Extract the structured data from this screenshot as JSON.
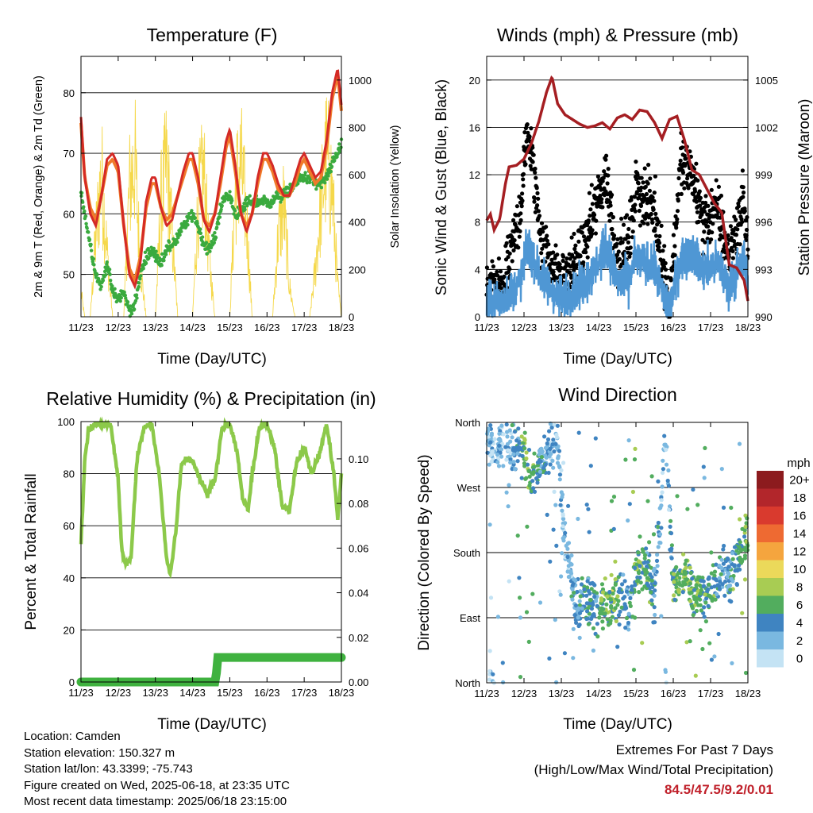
{
  "panels": {
    "temperature": {
      "title": "Temperature (F)",
      "ylabel_left": "2m & 9m T (Red, Orange) & 2m Td (Green)",
      "ylabel_right": "Solar Insolation (Yellow)",
      "xlabel": "Time (Day/UTC)"
    },
    "winds": {
      "title": "Winds (mph) & Pressure (mb)",
      "ylabel_left": "Sonic Wind & Gust (Blue, Black)",
      "ylabel_right": "Station Pressure (Maroon)",
      "xlabel": "Time (Day/UTC)"
    },
    "humidity": {
      "title": "Relative Humidity (%) & Precipitation (in)",
      "ylabel_left": "Percent & Total Rainfall",
      "xlabel": "Time (Day/UTC)"
    },
    "direction": {
      "title": "Wind Direction",
      "ylabel_left": "Direction (Colored By Speed)",
      "xlabel": "Time (Day/UTC)",
      "legend_title": "mph"
    }
  },
  "colors": {
    "temp_2m": "#d42a26",
    "temp_9m": "#f07a2a",
    "dewpoint": "#3aaa3e",
    "solar": "#f5d84a",
    "wind": "#4f97d4",
    "gust": "#000000",
    "pressure": "#a51e22",
    "rh": "#8cc94a",
    "precip": "#3fb23f",
    "extremes_text": "#c0202a"
  },
  "info": {
    "location": "Location: Camden",
    "elevation": "Station elevation: 150.327 m",
    "latlon": "Station lat/lon: 43.3399; -75.743",
    "created": "Figure created on Wed, 2025-06-18, at 23:35 UTC",
    "latest": "Most recent data timestamp: 2025/06/18 23:15:00"
  },
  "extremes": {
    "title": "Extremes For Past 7 Days",
    "subtitle": "(High/Low/Max Wind/Total Precipitation)",
    "values": "84.5/47.5/9.2/0.01"
  },
  "chart_data": [
    {
      "type": "line",
      "panel": "temperature",
      "x_ticks": [
        "11/23",
        "12/23",
        "13/23",
        "14/23",
        "15/23",
        "16/23",
        "17/23",
        "18/23"
      ],
      "x": [
        0,
        0.1,
        0.25,
        0.4,
        0.55,
        0.7,
        0.85,
        1,
        1.15,
        1.3,
        1.45,
        1.6,
        1.75,
        1.9,
        2,
        2.15,
        2.3,
        2.45,
        2.6,
        2.75,
        2.9,
        3,
        3.15,
        3.3,
        3.45,
        3.6,
        3.75,
        3.9,
        4,
        4.15,
        4.3,
        4.45,
        4.6,
        4.75,
        4.9,
        5,
        5.15,
        5.3,
        5.45,
        5.6,
        5.75,
        5.9,
        6,
        6.15,
        6.3,
        6.45,
        6.6,
        6.75,
        6.9,
        7
      ],
      "series": [
        {
          "name": "2m T",
          "color": "#d42a26",
          "y": [
            76,
            66,
            60,
            58,
            63,
            69,
            70,
            68,
            58,
            50,
            48,
            52,
            62,
            66,
            66,
            61,
            58,
            59,
            63,
            67,
            70,
            70,
            66,
            59,
            57,
            60,
            66,
            72,
            74,
            68,
            60,
            57,
            60,
            66,
            70,
            70,
            68,
            65,
            63,
            63,
            66,
            69,
            70,
            68,
            66,
            67,
            72,
            80,
            84,
            78
          ]
        },
        {
          "name": "9m T",
          "color": "#f07a2a",
          "y": [
            75,
            66,
            61,
            59,
            63,
            68,
            69,
            67,
            58,
            51,
            49,
            53,
            61,
            65,
            65,
            61,
            59,
            60,
            63,
            66,
            69,
            69,
            65,
            59,
            58,
            60,
            65,
            71,
            73,
            67,
            60,
            58,
            60,
            65,
            69,
            69,
            67,
            64,
            63,
            63,
            65,
            68,
            69,
            67,
            65,
            66,
            71,
            79,
            83,
            77
          ]
        },
        {
          "name": "2m Td",
          "color": "#3aaa3e",
          "y": [
            64,
            60,
            55,
            50,
            48,
            52,
            47,
            46,
            47,
            44,
            45,
            50,
            53,
            54,
            53,
            52,
            54,
            55,
            56,
            58,
            59,
            60,
            58,
            55,
            54,
            56,
            61,
            63,
            63,
            60,
            60,
            62,
            62,
            62,
            62,
            62,
            62,
            63,
            63,
            64,
            65,
            66,
            66,
            66,
            65,
            65,
            66,
            68,
            70,
            72
          ]
        },
        {
          "name": "Solar",
          "color": "#f5d84a",
          "axis": "right",
          "y": [
            150,
            0,
            0,
            500,
            900,
            400,
            0,
            0,
            0,
            800,
            980,
            300,
            0,
            0,
            0,
            700,
            950,
            500,
            0,
            0,
            0,
            0,
            700,
            900,
            350,
            0,
            0,
            0,
            0,
            800,
            950,
            600,
            0,
            0,
            0,
            0,
            0,
            500,
            700,
            200,
            0,
            0,
            0,
            0,
            300,
            700,
            1000,
            800,
            200,
            0
          ]
        }
      ],
      "ylim": [
        43,
        86
      ],
      "yticks": [
        50,
        60,
        70,
        80
      ],
      "ylim_right": [
        0,
        1100
      ],
      "yticks_right": [
        0,
        200,
        400,
        600,
        800,
        1000
      ],
      "grid": true
    },
    {
      "type": "scatter",
      "panel": "winds",
      "x_ticks": [
        "11/23",
        "12/23",
        "13/23",
        "14/23",
        "15/23",
        "16/23",
        "17/23",
        "18/23"
      ],
      "pressure": {
        "x": [
          0,
          0.1,
          0.2,
          0.35,
          0.5,
          0.6,
          0.8,
          1,
          1.2,
          1.4,
          1.6,
          1.75,
          1.9,
          2.1,
          2.3,
          2.5,
          2.7,
          2.9,
          3.1,
          3.3,
          3.5,
          3.7,
          3.9,
          4.1,
          4.3,
          4.5,
          4.7,
          4.9,
          5.1,
          5.3,
          5.5,
          5.7,
          5.9,
          6.1,
          6.3,
          6.5,
          6.7,
          6.9,
          7
        ],
        "y": [
          996.1,
          996.5,
          995.5,
          996.2,
          998.4,
          999.5,
          999.6,
          1000,
          1001,
          1002.4,
          1004.2,
          1005.2,
          1003.5,
          1002.8,
          1002.5,
          1002.2,
          1002,
          1002.1,
          1002.3,
          1001.9,
          1002.6,
          1002.8,
          1002.5,
          1003.1,
          1003,
          1002.3,
          1001.3,
          1002.5,
          1002.7,
          1001.2,
          999.3,
          999,
          998.1,
          997.2,
          996.6,
          993.3,
          993.1,
          992.3,
          991
        ]
      },
      "wind_mean": {
        "x": [
          0,
          0.5,
          0.9,
          1.1,
          1.5,
          2,
          2.5,
          2.9,
          3.2,
          3.5,
          3.8,
          4,
          4.5,
          4.9,
          5.2,
          5.5,
          5.8,
          6.2,
          6.5,
          6.9,
          7
        ],
        "y": [
          1,
          1.5,
          3,
          6,
          3,
          1.5,
          2.5,
          4,
          6,
          3,
          3,
          5,
          4,
          0.5,
          5,
          5.5,
          4,
          4.5,
          2.5,
          5,
          2.5
        ]
      },
      "gust": {
        "x": [
          0,
          0.5,
          0.9,
          1.1,
          1.5,
          2,
          2.5,
          2.9,
          3.2,
          3.5,
          3.8,
          4,
          4.5,
          4.9,
          5.2,
          5.5,
          5.8,
          6.2,
          6.5,
          6.9,
          7
        ],
        "y": [
          2,
          3,
          9,
          16,
          6,
          3,
          5,
          9,
          12,
          5,
          6,
          11,
          9,
          1,
          13,
          12,
          8,
          9,
          5,
          10,
          5
        ]
      },
      "ylim": [
        0,
        22
      ],
      "yticks": [
        0,
        4,
        8,
        12,
        16,
        20
      ],
      "ylim_right": [
        990,
        1006.5
      ],
      "yticks_right": [
        990,
        993,
        996,
        999,
        1002,
        1005
      ],
      "grid": true
    },
    {
      "type": "line",
      "panel": "humidity",
      "x_ticks": [
        "11/23",
        "12/23",
        "13/23",
        "14/23",
        "15/23",
        "16/23",
        "17/23",
        "18/23"
      ],
      "series": [
        {
          "name": "RH",
          "color": "#8cc94a",
          "x": [
            0,
            0.1,
            0.2,
            0.4,
            0.6,
            0.8,
            1,
            1.1,
            1.2,
            1.35,
            1.5,
            1.7,
            1.9,
            2.1,
            2.3,
            2.4,
            2.55,
            2.7,
            2.85,
            3,
            3.2,
            3.4,
            3.6,
            3.8,
            4,
            4.2,
            4.35,
            4.5,
            4.6,
            4.8,
            5,
            5.2,
            5.4,
            5.6,
            5.8,
            6,
            6.2,
            6.4,
            6.6,
            6.8,
            6.9,
            7
          ],
          "y": [
            53,
            85,
            97,
            99,
            99,
            99,
            78,
            50,
            45,
            48,
            85,
            98,
            99,
            80,
            48,
            41,
            58,
            84,
            86,
            85,
            78,
            72,
            78,
            98,
            99,
            88,
            70,
            66,
            80,
            98,
            99,
            90,
            68,
            66,
            85,
            90,
            80,
            87,
            99,
            80,
            62,
            80
          ]
        },
        {
          "name": "Precip",
          "color": "#3fb23f",
          "x": [
            0,
            3.6,
            3.64,
            3.68,
            7
          ],
          "y": [
            0,
            0,
            0.004,
            0.011,
            0.011
          ]
        }
      ],
      "ylim": [
        0,
        100
      ],
      "yticks": [
        0,
        20,
        40,
        60,
        80,
        100
      ],
      "ylim_right": [
        0,
        0.1167
      ],
      "yticks_right": [
        0,
        0.02,
        0.04,
        0.06,
        0.08,
        0.1
      ],
      "grid": true
    },
    {
      "type": "scatter",
      "panel": "direction",
      "x_ticks": [
        "11/23",
        "12/23",
        "13/23",
        "14/23",
        "15/23",
        "16/23",
        "17/23",
        "18/23"
      ],
      "y_ticks": [
        "North",
        "West",
        "South",
        "East",
        "North"
      ],
      "direction_centers": {
        "x": [
          0.2,
          0.6,
          0.8,
          1,
          1.2,
          1.6,
          1.9,
          2.1,
          2.4,
          2.7,
          2.9,
          3.2,
          3.5,
          3.8,
          4,
          4.2,
          4.5,
          4.8,
          5,
          5.3,
          5.5,
          5.7,
          5.9,
          6.1,
          6.3,
          6.5,
          6.7,
          6.9
        ],
        "y_deg": [
          330,
          330,
          320,
          320,
          280,
          320,
          330,
          200,
          100,
          120,
          100,
          110,
          120,
          100,
          150,
          170,
          120,
          350,
          130,
          150,
          120,
          125,
          120,
          130,
          160,
          140,
          170,
          200
        ],
        "speed_mph": [
          2,
          2,
          4,
          6,
          6,
          3,
          2,
          2,
          3,
          5,
          4,
          7,
          6,
          3,
          6,
          6,
          4,
          1,
          6,
          7,
          6,
          6,
          5,
          5,
          3,
          4,
          5,
          6
        ]
      },
      "legend": {
        "title": "mph",
        "labels": [
          "20+",
          "18",
          "16",
          "14",
          "12",
          "10",
          "8",
          "6",
          "4",
          "2",
          "0"
        ],
        "colors": [
          "#8c1b1e",
          "#b2262b",
          "#d93a2e",
          "#ee6a32",
          "#f5a53e",
          "#ebd95a",
          "#a8cc53",
          "#52ad5e",
          "#3f84c1",
          "#7ab8e0",
          "#c4e3f4"
        ]
      },
      "grid": true
    }
  ]
}
